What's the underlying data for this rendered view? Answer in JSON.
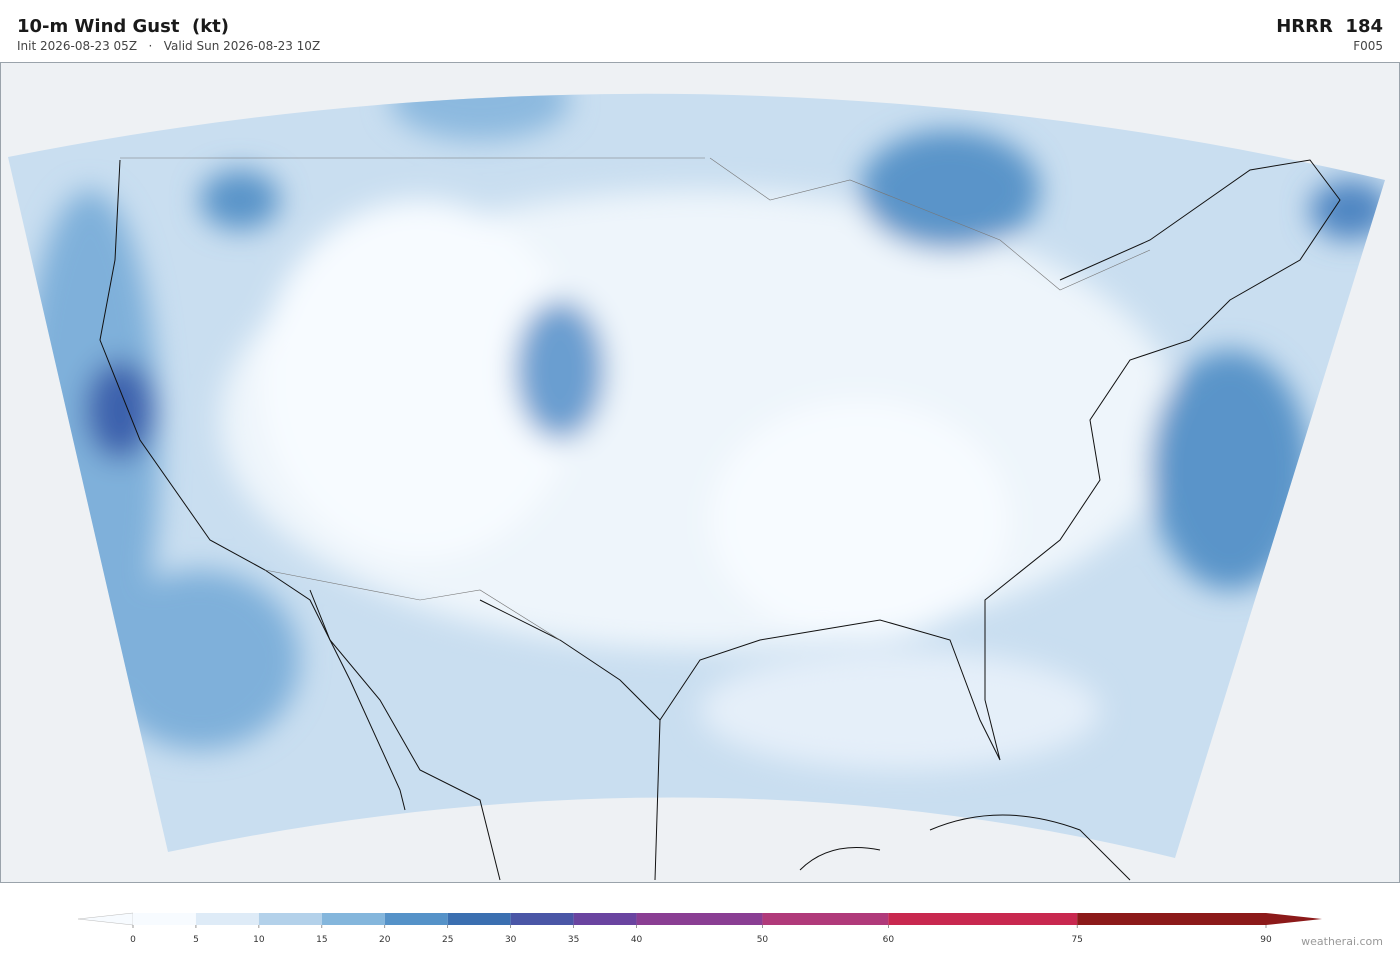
{
  "header": {
    "title": "10-m Wind Gust  (kt)",
    "subtitle": "Init 2026-08-23 05Z   ·   Valid Sun 2026-08-23 10Z",
    "model": "HRRR  184",
    "forecast": "F005"
  },
  "colorbar": {
    "ticks": [
      0,
      5,
      10,
      15,
      20,
      25,
      30,
      35,
      40,
      50,
      60,
      75,
      90
    ],
    "colors": [
      "#f7fbff",
      "#deebf7",
      "#b3d1ea",
      "#84b6dc",
      "#5592c8",
      "#3b6fb0",
      "#4a56a6",
      "#6a44a0",
      "#8a3e93",
      "#b03a7a",
      "#c8284f",
      "#8c1a1a"
    ]
  },
  "footer": {
    "credit": "weatherai.com"
  }
}
